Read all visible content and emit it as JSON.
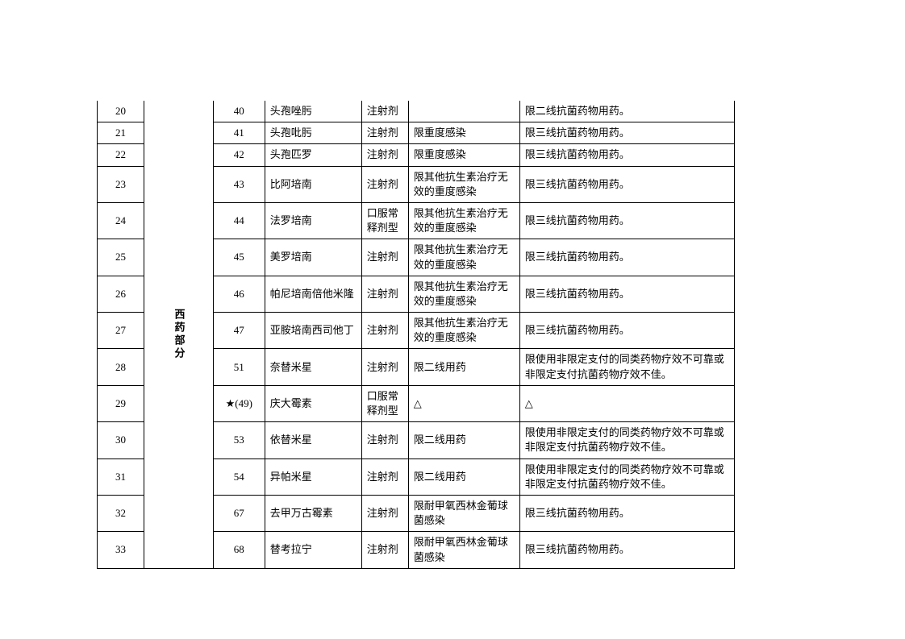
{
  "table": {
    "category_label": "西药部分",
    "columns": [
      "seq",
      "code",
      "name",
      "form",
      "restrict",
      "remark"
    ],
    "col_widths": {
      "seq": 58,
      "cat": 24,
      "code": 64,
      "name": 120,
      "form": 58,
      "restrict": 138,
      "remark": 266
    },
    "font_size": 13,
    "border_color": "#000000",
    "background_color": "#ffffff",
    "rows": [
      {
        "seq": "20",
        "code": "40",
        "name": "头孢唑肟",
        "form": "注射剂",
        "restrict": "",
        "remark": "限二线抗菌药物用药。"
      },
      {
        "seq": "21",
        "code": "41",
        "name": "头孢吡肟",
        "form": "注射剂",
        "restrict": "限重度感染",
        "remark": "限三线抗菌药物用药。"
      },
      {
        "seq": "22",
        "code": "42",
        "name": "头孢匹罗",
        "form": "注射剂",
        "restrict": "限重度感染",
        "remark": "限三线抗菌药物用药。"
      },
      {
        "seq": "23",
        "code": "43",
        "name": "比阿培南",
        "form": "注射剂",
        "restrict": "限其他抗生素治疗无效的重度感染",
        "remark": "限三线抗菌药物用药。"
      },
      {
        "seq": "24",
        "code": "44",
        "name": "法罗培南",
        "form": "口服常释剂型",
        "restrict": "限其他抗生素治疗无效的重度感染",
        "remark": "限三线抗菌药物用药。"
      },
      {
        "seq": "25",
        "code": "45",
        "name": "美罗培南",
        "form": "注射剂",
        "restrict": "限其他抗生素治疗无效的重度感染",
        "remark": "限三线抗菌药物用药。"
      },
      {
        "seq": "26",
        "code": "46",
        "name": "帕尼培南倍他米隆",
        "form": "注射剂",
        "restrict": "限其他抗生素治疗无效的重度感染",
        "remark": "限三线抗菌药物用药。"
      },
      {
        "seq": "27",
        "code": "47",
        "name": "亚胺培南西司他丁",
        "form": "注射剂",
        "restrict": "限其他抗生素治疗无效的重度感染",
        "remark": "限三线抗菌药物用药。"
      },
      {
        "seq": "28",
        "code": "51",
        "name": "奈替米星",
        "form": "注射剂",
        "restrict": "限二线用药",
        "remark": "限使用非限定支付的同类药物疗效不可靠或非限定支付抗菌药物疗效不佳。"
      },
      {
        "seq": "29",
        "code": "★(49)",
        "name": "庆大霉素",
        "form": "口服常释剂型",
        "restrict": "△",
        "remark": "△"
      },
      {
        "seq": "30",
        "code": "53",
        "name": "依替米星",
        "form": "注射剂",
        "restrict": "限二线用药",
        "remark": "限使用非限定支付的同类药物疗效不可靠或非限定支付抗菌药物疗效不佳。"
      },
      {
        "seq": "31",
        "code": "54",
        "name": "异帕米星",
        "form": "注射剂",
        "restrict": "限二线用药",
        "remark": "限使用非限定支付的同类药物疗效不可靠或非限定支付抗菌药物疗效不佳。"
      },
      {
        "seq": "32",
        "code": "67",
        "name": "去甲万古霉素",
        "form": "注射剂",
        "restrict": "限耐甲氧西林金葡球菌感染",
        "remark": "限三线抗菌药物用药。"
      },
      {
        "seq": "33",
        "code": "68",
        "name": "替考拉宁",
        "form": "注射剂",
        "restrict": "限耐甲氧西林金葡球菌感染",
        "remark": "限三线抗菌药物用药。"
      }
    ]
  }
}
